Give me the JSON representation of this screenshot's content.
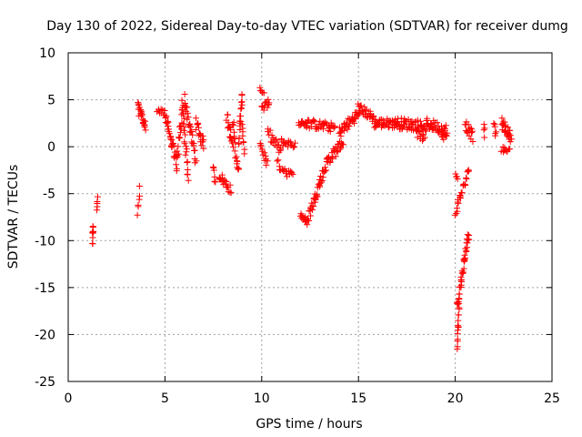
{
  "chart_data": {
    "type": "scatter",
    "title": "Day 130 of 2022, Sidereal Day-to-day VTEC variation (SDTVAR) for receiver dumg",
    "xlabel": "GPS time / hours",
    "ylabel": "SDTVAR / TECUs",
    "xlim": [
      0,
      25
    ],
    "ylim": [
      -25,
      10
    ],
    "x_ticks": [
      0,
      5,
      10,
      15,
      20,
      25
    ],
    "y_ticks": [
      -25,
      -20,
      -15,
      -10,
      -5,
      0,
      5,
      10
    ],
    "x_tick_labels": [
      "0",
      "5",
      "10",
      "15",
      "20",
      "25"
    ],
    "y_tick_labels": [
      "-25",
      "-20",
      "-15",
      "-10",
      "-5",
      "0",
      "5",
      "10"
    ],
    "grid": true,
    "marker": "+",
    "series": [
      {
        "name": "SDTVAR",
        "color": "#ff0000",
        "segments": [
          {
            "x0": 1.25,
            "y0": -10.2,
            "x1": 1.3,
            "y1": -8.4,
            "n": 10,
            "jitter": 0.4
          },
          {
            "x0": 1.45,
            "y0": -7.0,
            "x1": 1.55,
            "y1": -5.2,
            "n": 5,
            "jitter": 0.3
          },
          {
            "x0": 3.6,
            "y0": -7.2,
            "x1": 3.7,
            "y1": -4.5,
            "n": 6,
            "jitter": 0.3
          },
          {
            "x0": 3.6,
            "y0": 4.2,
            "x1": 4.0,
            "y1": 2.0,
            "n": 22,
            "jitter": 0.6
          },
          {
            "x0": 4.6,
            "y0": 4.0,
            "x1": 5.0,
            "y1": 3.6,
            "n": 10,
            "jitter": 0.3
          },
          {
            "x0": 5.0,
            "y0": 3.5,
            "x1": 5.3,
            "y1": 1.0,
            "n": 14,
            "jitter": 0.5
          },
          {
            "x0": 5.3,
            "y0": 1.0,
            "x1": 5.6,
            "y1": -2.0,
            "n": 16,
            "jitter": 0.8
          },
          {
            "x0": 5.6,
            "y0": -2.0,
            "x1": 5.9,
            "y1": 4.2,
            "n": 18,
            "jitter": 0.9
          },
          {
            "x0": 5.9,
            "y0": 4.5,
            "x1": 6.2,
            "y1": -3.0,
            "n": 22,
            "jitter": 1.0
          },
          {
            "x0": 6.0,
            "y0": 5.2,
            "x1": 6.3,
            "y1": 2.0,
            "n": 14,
            "jitter": 0.6
          },
          {
            "x0": 6.3,
            "y0": 2.0,
            "x1": 6.6,
            "y1": -1.5,
            "n": 14,
            "jitter": 0.7
          },
          {
            "x0": 6.6,
            "y0": 2.5,
            "x1": 7.0,
            "y1": 0.2,
            "n": 18,
            "jitter": 0.7
          },
          {
            "x0": 7.5,
            "y0": -2.0,
            "x1": 7.6,
            "y1": -3.8,
            "n": 6,
            "jitter": 0.3
          },
          {
            "x0": 7.8,
            "y0": -3.0,
            "x1": 8.4,
            "y1": -4.6,
            "n": 20,
            "jitter": 0.5
          },
          {
            "x0": 8.2,
            "y0": 3.2,
            "x1": 8.5,
            "y1": 0.0,
            "n": 16,
            "jitter": 0.7
          },
          {
            "x0": 8.5,
            "y0": 2.5,
            "x1": 8.8,
            "y1": -3.0,
            "n": 18,
            "jitter": 0.8
          },
          {
            "x0": 8.8,
            "y0": 0.5,
            "x1": 9.0,
            "y1": 6.0,
            "n": 18,
            "jitter": 0.6
          },
          {
            "x0": 9.0,
            "y0": 2.0,
            "x1": 9.1,
            "y1": -0.5,
            "n": 8,
            "jitter": 0.4
          },
          {
            "x0": 9.9,
            "y0": 6.3,
            "x1": 10.1,
            "y1": 5.6,
            "n": 6,
            "jitter": 0.2
          },
          {
            "x0": 10.0,
            "y0": 4.0,
            "x1": 10.4,
            "y1": 4.8,
            "n": 14,
            "jitter": 0.4
          },
          {
            "x0": 9.9,
            "y0": 0.5,
            "x1": 10.3,
            "y1": -2.0,
            "n": 12,
            "jitter": 0.5
          },
          {
            "x0": 10.3,
            "y0": 1.5,
            "x1": 11.0,
            "y1": -0.5,
            "n": 20,
            "jitter": 0.6
          },
          {
            "x0": 11.0,
            "y0": 0.5,
            "x1": 11.7,
            "y1": 0.2,
            "n": 18,
            "jitter": 0.4
          },
          {
            "x0": 10.8,
            "y0": -1.8,
            "x1": 11.6,
            "y1": -3.2,
            "n": 18,
            "jitter": 0.5
          },
          {
            "x0": 11.9,
            "y0": 2.6,
            "x1": 12.3,
            "y1": 2.4,
            "n": 10,
            "jitter": 0.3
          },
          {
            "x0": 12.0,
            "y0": -7.2,
            "x1": 12.4,
            "y1": -8.2,
            "n": 14,
            "jitter": 0.4
          },
          {
            "x0": 12.4,
            "y0": -7.5,
            "x1": 13.4,
            "y1": -1.5,
            "n": 40,
            "jitter": 0.6
          },
          {
            "x0": 13.4,
            "y0": -1.5,
            "x1": 14.2,
            "y1": 0.5,
            "n": 28,
            "jitter": 0.6
          },
          {
            "x0": 12.3,
            "y0": 2.5,
            "x1": 13.8,
            "y1": 2.0,
            "n": 40,
            "jitter": 0.5
          },
          {
            "x0": 14.0,
            "y0": 1.5,
            "x1": 15.0,
            "y1": 3.5,
            "n": 36,
            "jitter": 0.6
          },
          {
            "x0": 15.0,
            "y0": 4.2,
            "x1": 15.8,
            "y1": 3.0,
            "n": 30,
            "jitter": 0.5
          },
          {
            "x0": 15.8,
            "y0": 2.5,
            "x1": 17.0,
            "y1": 2.5,
            "n": 44,
            "jitter": 0.5
          },
          {
            "x0": 17.0,
            "y0": 2.5,
            "x1": 18.5,
            "y1": 2.2,
            "n": 52,
            "jitter": 0.6
          },
          {
            "x0": 18.0,
            "y0": 1.5,
            "x1": 18.4,
            "y1": 0.8,
            "n": 12,
            "jitter": 0.4
          },
          {
            "x0": 18.5,
            "y0": 2.5,
            "x1": 19.5,
            "y1": 1.8,
            "n": 36,
            "jitter": 0.6
          },
          {
            "x0": 19.3,
            "y0": 1.0,
            "x1": 19.6,
            "y1": 1.2,
            "n": 8,
            "jitter": 0.3
          },
          {
            "x0": 20.0,
            "y0": -3.0,
            "x1": 20.1,
            "y1": -3.4,
            "n": 4,
            "jitter": 0.2
          },
          {
            "x0": 20.0,
            "y0": -7.0,
            "x1": 20.7,
            "y1": -2.5,
            "n": 24,
            "jitter": 0.5
          },
          {
            "x0": 20.1,
            "y0": -21.5,
            "x1": 20.2,
            "y1": -17.0,
            "n": 14,
            "jitter": 0.3
          },
          {
            "x0": 20.1,
            "y0": -17.0,
            "x1": 20.7,
            "y1": -9.2,
            "n": 40,
            "jitter": 0.5
          },
          {
            "x0": 20.5,
            "y0": 2.5,
            "x1": 20.9,
            "y1": 1.0,
            "n": 16,
            "jitter": 0.6
          },
          {
            "x0": 21.5,
            "y0": 2.5,
            "x1": 21.5,
            "y1": 1.0,
            "n": 4,
            "jitter": 0.3
          },
          {
            "x0": 22.0,
            "y0": 2.5,
            "x1": 22.1,
            "y1": 1.2,
            "n": 6,
            "jitter": 0.4
          },
          {
            "x0": 22.4,
            "y0": 2.5,
            "x1": 22.9,
            "y1": 1.0,
            "n": 24,
            "jitter": 0.6
          },
          {
            "x0": 22.4,
            "y0": -0.2,
            "x1": 22.8,
            "y1": -0.5,
            "n": 10,
            "jitter": 0.3
          }
        ]
      }
    ]
  }
}
